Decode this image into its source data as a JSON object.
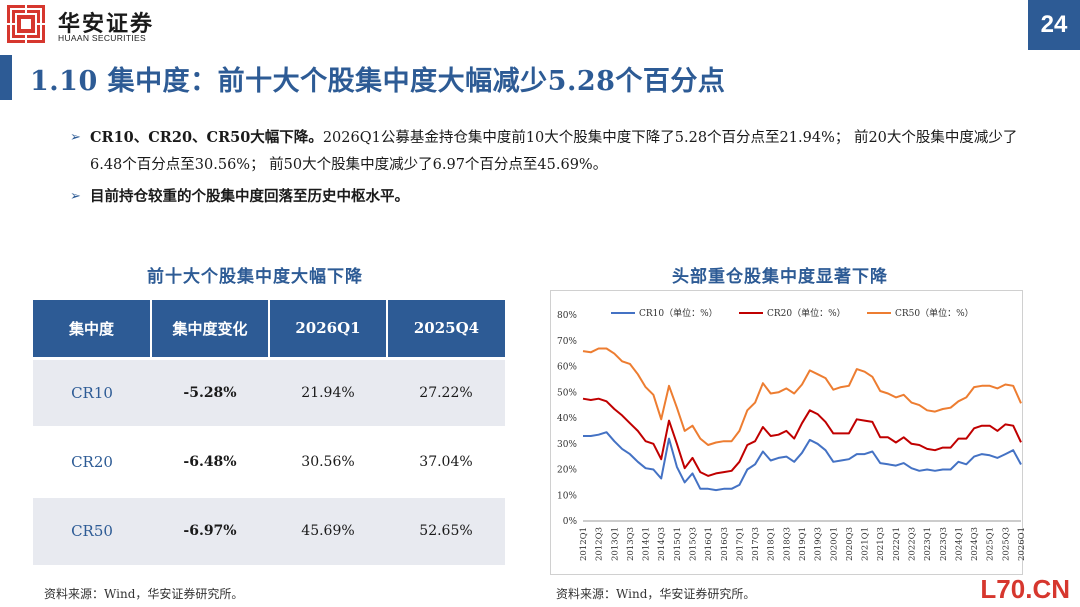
{
  "header": {
    "logo_cn": "华安证券",
    "logo_en": "HUAAN SECURITIES",
    "page_number": "24"
  },
  "title": "1.10 集中度：前十大个股集中度大幅减少5.28个百分点",
  "bullets": [
    {
      "bold": "CR10、CR20、CR50大幅下降。",
      "text": "2026Q1公募基金持仓集中度前10大个股集中度下降了5.28个百分点至21.94%； 前20大个股集中度减少了6.48个百分点至30.56%； 前50大个股集中度减少了6.97个百分点至45.69%。"
    },
    {
      "bold": "目前持仓较重的个股集中度回落至历史中枢水平。",
      "text": ""
    }
  ],
  "left_section_title": "前十大个股集中度大幅下降",
  "right_section_title": "头部重仓股集中度显著下降",
  "table": {
    "headers": [
      "集中度",
      "集中度变化",
      "2026Q1",
      "2025Q4"
    ],
    "rows": [
      [
        "CR10",
        "-5.28%",
        "21.94%",
        "27.22%"
      ],
      [
        "CR20",
        "-6.48%",
        "30.56%",
        "37.04%"
      ],
      [
        "CR50",
        "-6.97%",
        "45.69%",
        "52.65%"
      ]
    ]
  },
  "chart_data": {
    "type": "line",
    "title": "",
    "xlabel": "",
    "ylabel": "",
    "ylim": [
      0,
      80
    ],
    "y_ticks": [
      "0%",
      "10%",
      "20%",
      "30%",
      "40%",
      "50%",
      "60%",
      "70%",
      "80%"
    ],
    "x_tick_labels": [
      "2012Q1",
      "2012Q3",
      "2013Q1",
      "2013Q3",
      "2014Q1",
      "2014Q3",
      "2015Q1",
      "2015Q3",
      "2016Q1",
      "2016Q3",
      "2017Q1",
      "2017Q3",
      "2018Q1",
      "2018Q3",
      "2019Q1",
      "2019Q3",
      "2020Q1",
      "2020Q3",
      "2021Q1",
      "2021Q3",
      "2022Q1",
      "2022Q3",
      "2023Q1",
      "2023Q3",
      "2024Q1",
      "2024Q3",
      "2025Q1",
      "2025Q3",
      "2026Q1"
    ],
    "grid": false,
    "legend_position": "top",
    "series": [
      {
        "name": "CR10（单位：%）",
        "color": "#4472c4",
        "values": [
          33,
          33,
          33.5,
          34.5,
          31,
          28,
          26,
          23,
          20.5,
          20,
          16.5,
          32,
          21,
          15,
          18.5,
          12.5,
          12.5,
          12,
          12.5,
          12.5,
          14,
          20,
          22,
          27,
          23.5,
          24.5,
          25,
          23,
          26.5,
          31.5,
          30,
          27.5,
          23,
          23.5,
          24,
          26,
          26,
          27,
          22.5,
          22,
          21.5,
          22.5,
          20.5,
          19.5,
          20,
          19.5,
          20,
          20,
          23,
          22,
          25,
          26,
          25.5,
          24.5,
          26,
          27.5,
          21.94
        ]
      },
      {
        "name": "CR20（单位：%）",
        "color": "#c00000",
        "values": [
          47.5,
          47,
          47.5,
          46.5,
          43.5,
          41,
          38,
          35,
          31,
          30,
          24,
          39,
          30,
          20.5,
          24.5,
          19,
          17.5,
          18.5,
          19,
          19.5,
          23,
          29.5,
          31,
          36.5,
          33,
          33.5,
          35,
          32,
          38,
          43,
          41.5,
          38.5,
          34,
          34,
          34,
          39.5,
          39,
          38.5,
          32.5,
          32.5,
          30.5,
          32.5,
          30,
          29.5,
          28,
          27.5,
          28.5,
          28.5,
          32,
          32,
          36,
          37,
          37,
          35,
          37.5,
          37,
          30.56
        ]
      },
      {
        "name": "CR50（单位：%）",
        "color": "#ed7d31",
        "values": [
          66,
          65.5,
          67,
          67,
          65,
          62,
          61,
          57,
          52,
          49,
          39.5,
          52.5,
          44,
          35,
          37,
          32,
          29.5,
          30.5,
          31,
          31,
          35,
          43,
          46,
          53.5,
          49.5,
          50,
          51.5,
          49.5,
          53,
          58.5,
          57,
          55.5,
          51,
          52,
          52.5,
          59,
          58,
          56,
          50.5,
          49.5,
          48,
          49,
          46,
          45,
          43,
          42.5,
          43.5,
          44,
          46.5,
          48,
          52,
          52.5,
          52.5,
          51.5,
          53,
          52.5,
          45.69
        ]
      }
    ]
  },
  "sources": {
    "left": "资料来源：Wind，华安证券研究所。",
    "right": "资料来源：Wind，华安证券研究所。"
  },
  "watermark": "L70.CN",
  "colors": {
    "brand": "#2d5b95",
    "logo_red": "#d6372e",
    "table_row_alt": "#e8eaf0"
  }
}
